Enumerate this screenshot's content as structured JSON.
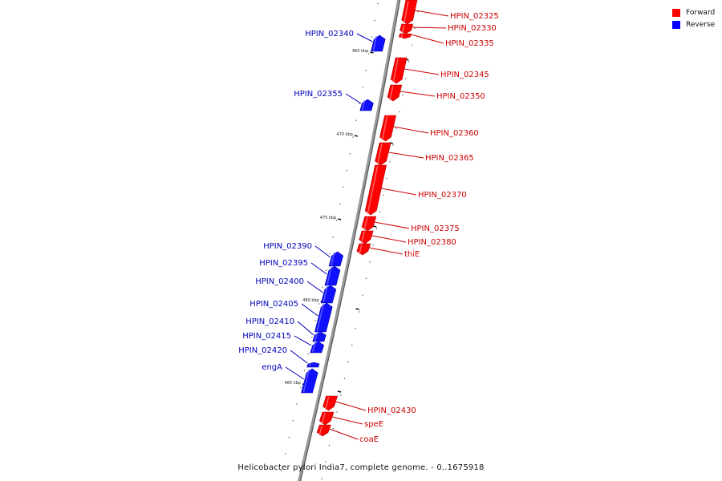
{
  "caption": "Helicobacter pylori India7, complete genome. - 0..1675918",
  "legend": [
    {
      "label": "Forward",
      "color": "#ff0000"
    },
    {
      "label": "Reverse",
      "color": "#0000ff"
    }
  ],
  "colors": {
    "forward": "#ff0000",
    "reverse": "#1010ff",
    "backbone": "#888888",
    "forward_label": "#cc0000",
    "reverse_label": "#0000bb"
  },
  "kbp_labels": [
    "465 kbp",
    "470 kbp",
    "475 kbp",
    "480 kbp",
    "485 kbp"
  ],
  "genes": [
    {
      "name": "HPIN_02325",
      "strand": "forward"
    },
    {
      "name": "HPIN_02330",
      "strand": "forward"
    },
    {
      "name": "HPIN_02335",
      "strand": "forward"
    },
    {
      "name": "HPIN_02340",
      "strand": "reverse"
    },
    {
      "name": "HPIN_02345",
      "strand": "forward"
    },
    {
      "name": "HPIN_02350",
      "strand": "forward"
    },
    {
      "name": "HPIN_02355",
      "strand": "reverse"
    },
    {
      "name": "HPIN_02360",
      "strand": "forward"
    },
    {
      "name": "HPIN_02365",
      "strand": "forward"
    },
    {
      "name": "HPIN_02370",
      "strand": "forward"
    },
    {
      "name": "HPIN_02375",
      "strand": "forward"
    },
    {
      "name": "HPIN_02380",
      "strand": "forward"
    },
    {
      "name": "thiE",
      "strand": "forward"
    },
    {
      "name": "HPIN_02390",
      "strand": "reverse"
    },
    {
      "name": "HPIN_02395",
      "strand": "reverse"
    },
    {
      "name": "HPIN_02400",
      "strand": "reverse"
    },
    {
      "name": "HPIN_02405",
      "strand": "reverse"
    },
    {
      "name": "HPIN_02410",
      "strand": "reverse"
    },
    {
      "name": "HPIN_02415",
      "strand": "reverse"
    },
    {
      "name": "HPIN_02420",
      "strand": "reverse"
    },
    {
      "name": "engA",
      "strand": "reverse"
    },
    {
      "name": "HPIN_02430",
      "strand": "forward"
    },
    {
      "name": "speE",
      "strand": "forward"
    },
    {
      "name": "coaE",
      "strand": "forward"
    }
  ]
}
